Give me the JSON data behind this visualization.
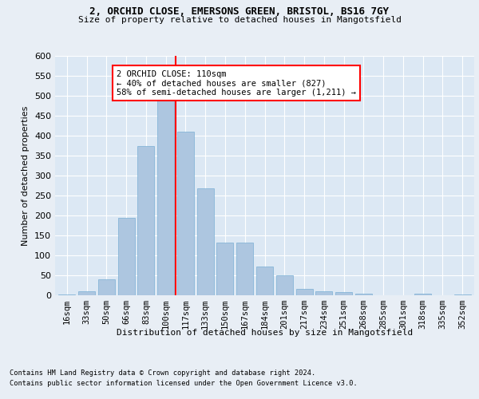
{
  "title1": "2, ORCHID CLOSE, EMERSONS GREEN, BRISTOL, BS16 7GY",
  "title2": "Size of property relative to detached houses in Mangotsfield",
  "xlabel": "Distribution of detached houses by size in Mangotsfield",
  "ylabel": "Number of detached properties",
  "categories": [
    "16sqm",
    "33sqm",
    "50sqm",
    "66sqm",
    "83sqm",
    "100sqm",
    "117sqm",
    "133sqm",
    "150sqm",
    "167sqm",
    "184sqm",
    "201sqm",
    "217sqm",
    "234sqm",
    "251sqm",
    "268sqm",
    "285sqm",
    "301sqm",
    "318sqm",
    "335sqm",
    "352sqm"
  ],
  "values": [
    3,
    10,
    40,
    195,
    375,
    490,
    410,
    268,
    132,
    132,
    73,
    50,
    16,
    10,
    8,
    5,
    1,
    0,
    5,
    1,
    3
  ],
  "bar_color": "#adc6e0",
  "bar_edgecolor": "#7aafd4",
  "vline_x": 5.5,
  "vline_color": "red",
  "annotation_text": "2 ORCHID CLOSE: 110sqm\n← 40% of detached houses are smaller (827)\n58% of semi-detached houses are larger (1,211) →",
  "annotation_box_color": "white",
  "annotation_box_edgecolor": "red",
  "ylim": [
    0,
    600
  ],
  "yticks": [
    0,
    50,
    100,
    150,
    200,
    250,
    300,
    350,
    400,
    450,
    500,
    550,
    600
  ],
  "footer1": "Contains HM Land Registry data © Crown copyright and database right 2024.",
  "footer2": "Contains public sector information licensed under the Open Government Licence v3.0.",
  "bg_color": "#e8eef5",
  "plot_bg_color": "#dce8f4"
}
